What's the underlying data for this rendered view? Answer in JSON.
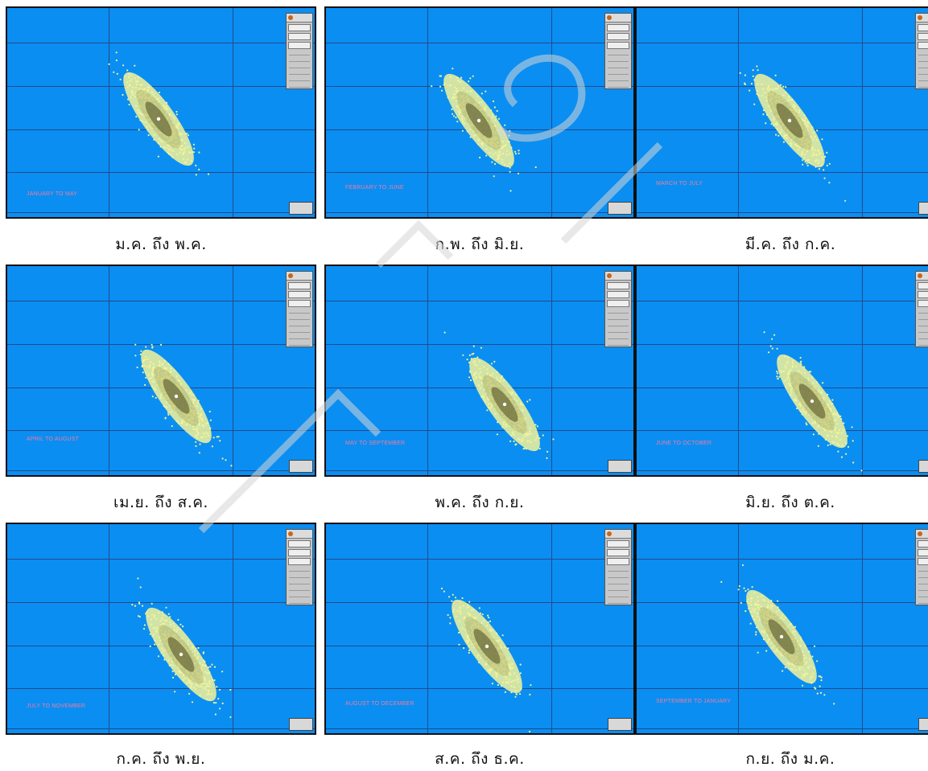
{
  "panels": [
    {
      "label": "JANUARY TO MAY",
      "caption": "ม.ค. ถึง พ.ค."
    },
    {
      "label": "FEBRUARY TO JUNE",
      "caption": "ก.พ. ถึง มิ.ย."
    },
    {
      "label": "MARCH TO JULY",
      "caption": "มี.ค. ถึง ก.ค."
    },
    {
      "label": "APRIL TO AUGUST",
      "caption": "เม.ย. ถึง ส.ค."
    },
    {
      "label": "MAY TO SEPTEMBER",
      "caption": "พ.ค. ถึง ก.ย."
    },
    {
      "label": "JUNE TO OCTOBER",
      "caption": "มิ.ย. ถึง ต.ค."
    },
    {
      "label": "JULY TO NOVEMBER",
      "caption": "ก.ค. ถึง พ.ย."
    },
    {
      "label": "AUGUST TO DECEMBER",
      "caption": "ส.ค. ถึง ธ.ค."
    },
    {
      "label": "SEPTEMBER TO JANUARY",
      "caption": "ก.ย. ถึง ม.ค."
    }
  ],
  "colors": {
    "ocean": "#0a8ef2",
    "grid": "#244a8a",
    "label": "#f47a9b",
    "cloud_light": "#f5f39a",
    "cloud_dark": "#4a4a2a",
    "legend_bg": "#c8c8c8"
  }
}
